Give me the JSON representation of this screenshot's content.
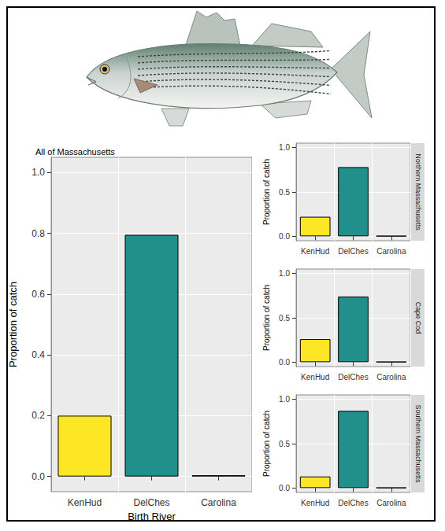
{
  "chart_data": [
    {
      "type": "bar",
      "title": "All of Massachusetts",
      "x_label": "Birth River",
      "y_label": "Proportion of catch",
      "categories": [
        "KenHud",
        "DelChes",
        "Carolina"
      ],
      "values": [
        0.2,
        0.795,
        0.004
      ],
      "colors": [
        "#fde725",
        "#21908c",
        "#440154"
      ],
      "ylim": [
        -0.05,
        1.05
      ],
      "yticks": [
        {
          "value": 0,
          "label": "0.0"
        },
        {
          "value": 0.2,
          "label": "0.2"
        },
        {
          "value": 0.4,
          "label": "0.4"
        },
        {
          "value": 0.6,
          "label": "0.6"
        },
        {
          "value": 0.8,
          "label": "0.8"
        },
        {
          "value": 1,
          "label": "1.0"
        }
      ],
      "grid": true
    },
    {
      "type": "bar",
      "title": "Northern Massachusetts",
      "y_label": "Proportion of catch",
      "categories": [
        "KenHud",
        "DelChes",
        "Carolina"
      ],
      "values": [
        0.22,
        0.78,
        0.004
      ],
      "colors": [
        "#fde725",
        "#21908c",
        "#440154"
      ],
      "ylim": [
        -0.05,
        1.05
      ],
      "yticks": [
        {
          "value": 0,
          "label": "0.0"
        },
        {
          "value": 0.5,
          "label": "0.5"
        },
        {
          "value": 1,
          "label": "1.0"
        }
      ],
      "grid": true
    },
    {
      "type": "bar",
      "title": "Cape Cod",
      "y_label": "Proportion of catch",
      "categories": [
        "KenHud",
        "DelChes",
        "Carolina"
      ],
      "values": [
        0.26,
        0.74,
        0.004
      ],
      "colors": [
        "#fde725",
        "#21908c",
        "#440154"
      ],
      "ylim": [
        -0.05,
        1.05
      ],
      "yticks": [
        {
          "value": 0,
          "label": "0.0"
        },
        {
          "value": 0.5,
          "label": "0.5"
        },
        {
          "value": 1,
          "label": "1.0"
        }
      ],
      "grid": true
    },
    {
      "type": "bar",
      "title": "Southern Massachusetts",
      "y_label": "Proportion of catch",
      "categories": [
        "KenHud",
        "DelChes",
        "Carolina"
      ],
      "values": [
        0.13,
        0.87,
        0.004
      ],
      "colors": [
        "#fde725",
        "#21908c",
        "#440154"
      ],
      "ylim": [
        -0.05,
        1.05
      ],
      "yticks": [
        {
          "value": 0,
          "label": "0.0"
        },
        {
          "value": 0.5,
          "label": "0.5"
        },
        {
          "value": 1,
          "label": "1.0"
        }
      ],
      "grid": true
    }
  ]
}
